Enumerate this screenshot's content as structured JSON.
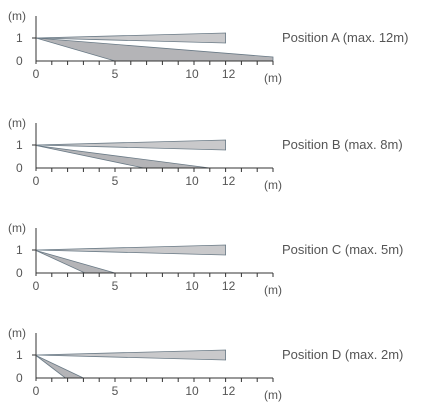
{
  "panels": [
    {
      "label": "Position  A (max.  12m)",
      "upper_ray_end_m": 12,
      "lower_ray_end_m": 15,
      "x_tick_labels": [
        "0",
        "5",
        "10",
        "12",
        "(m)"
      ],
      "y_tick_labels": [
        "1",
        "0"
      ],
      "y_unit": "(m)"
    },
    {
      "label": "Position  B (max.  8m)",
      "upper_ray_end_m": 12,
      "lower_ray_end_m": 11,
      "x_tick_labels": [
        "0",
        "5",
        "10",
        "12",
        "(m)"
      ],
      "y_tick_labels": [
        "1",
        "0"
      ],
      "y_unit": "(m)"
    },
    {
      "label": "Position  C (max.  5m)",
      "upper_ray_end_m": 12,
      "lower_ray_end_m": 5,
      "x_tick_labels": [
        "0",
        "5",
        "10",
        "12",
        "(m)"
      ],
      "y_tick_labels": [
        "1",
        "0"
      ],
      "y_unit": "(m)"
    },
    {
      "label": "Position  D (max.  2m)",
      "upper_ray_end_m": 12,
      "lower_ray_end_m": 3,
      "x_tick_labels": [
        "0",
        "5",
        "10",
        "12",
        "(m)"
      ],
      "y_tick_labels": [
        "1",
        "0"
      ],
      "y_unit": "(m)"
    }
  ],
  "colors": {
    "wedge_fill": "#c9c9cb",
    "wedge_stroke": "#6a7a86",
    "axis": "#333333",
    "text": "#555555"
  }
}
